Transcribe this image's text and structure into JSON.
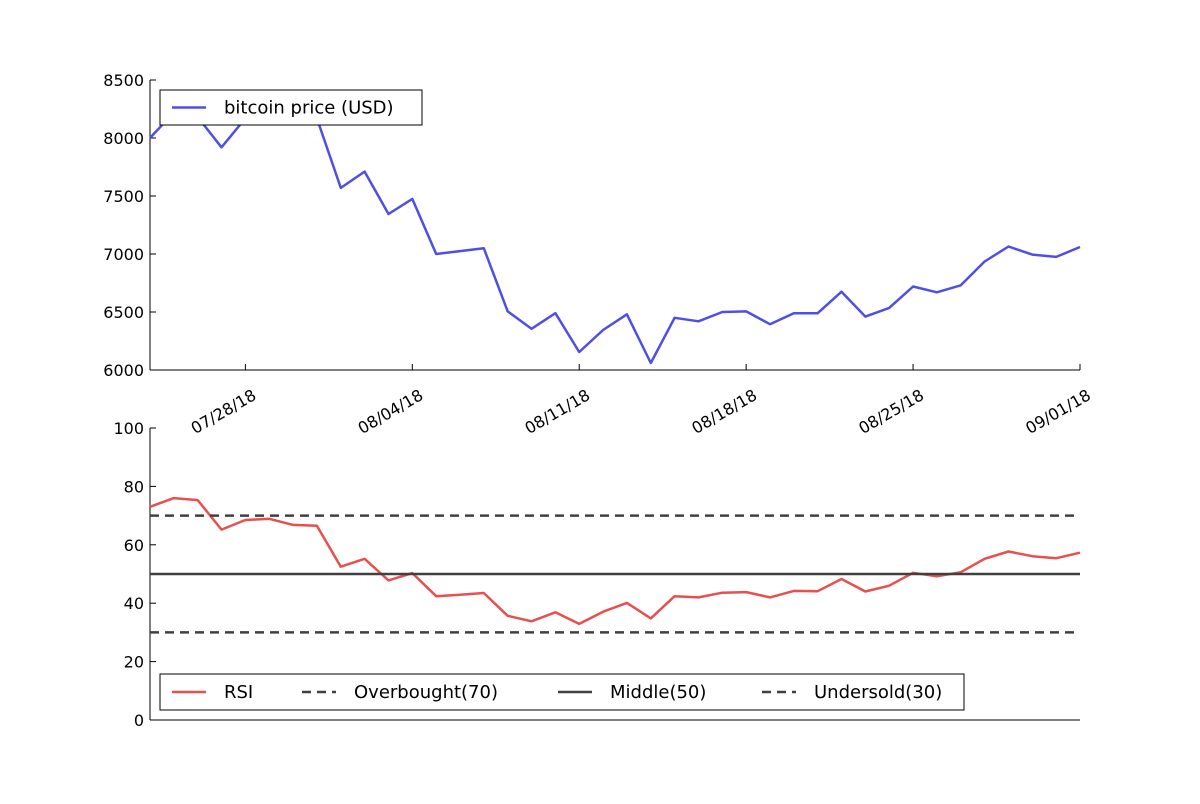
{
  "chart_data": [
    {
      "type": "line",
      "ylim": [
        6000,
        8500
      ],
      "yticks": [
        6000,
        6500,
        7000,
        7500,
        8000,
        8500
      ],
      "xlim": [
        "2018-07-24",
        "2018-09-01"
      ],
      "xtick_labels": [
        "07/28/18",
        "08/04/18",
        "08/11/18",
        "08/18/18",
        "08/25/18",
        "09/01/18"
      ],
      "legend_position": "upper-left",
      "series": [
        {
          "name": "bitcoin price (USD)",
          "color": "#4f4fe8",
          "points": [
            [
              "2018-07-24",
              8000
            ],
            [
              "2018-07-25",
              8220
            ],
            [
              "2018-07-26",
              8180
            ],
            [
              "2018-07-27",
              7920
            ],
            [
              "2018-07-28",
              8170
            ],
            [
              "2018-07-29",
              8210
            ],
            [
              "2018-07-30",
              8200
            ],
            [
              "2018-07-31",
              8170
            ],
            [
              "2018-08-01",
              7570
            ],
            [
              "2018-08-02",
              7710
            ],
            [
              "2018-08-03",
              7345
            ],
            [
              "2018-08-04",
              7475
            ],
            [
              "2018-08-05",
              7000
            ],
            [
              "2018-08-06",
              7025
            ],
            [
              "2018-08-07",
              7050
            ],
            [
              "2018-08-08",
              6505
            ],
            [
              "2018-08-09",
              6355
            ],
            [
              "2018-08-10",
              6490
            ],
            [
              "2018-08-11",
              6155
            ],
            [
              "2018-08-12",
              6345
            ],
            [
              "2018-08-13",
              6480
            ],
            [
              "2018-08-14",
              6060
            ],
            [
              "2018-08-15",
              6450
            ],
            [
              "2018-08-16",
              6420
            ],
            [
              "2018-08-17",
              6500
            ],
            [
              "2018-08-18",
              6505
            ],
            [
              "2018-08-19",
              6395
            ],
            [
              "2018-08-20",
              6490
            ],
            [
              "2018-08-21",
              6490
            ],
            [
              "2018-08-22",
              6675
            ],
            [
              "2018-08-23",
              6460
            ],
            [
              "2018-08-24",
              6535
            ],
            [
              "2018-08-25",
              6720
            ],
            [
              "2018-08-26",
              6670
            ],
            [
              "2018-08-27",
              6730
            ],
            [
              "2018-08-28",
              6935
            ],
            [
              "2018-08-29",
              7065
            ],
            [
              "2018-08-30",
              6995
            ],
            [
              "2018-08-31",
              6975
            ],
            [
              "2018-09-01",
              7060
            ]
          ]
        }
      ]
    },
    {
      "type": "line",
      "ylim": [
        0,
        100
      ],
      "yticks": [
        0,
        20,
        40,
        60,
        80,
        100
      ],
      "xlim": [
        "2018-07-24",
        "2018-09-01"
      ],
      "legend_position": "lower-center",
      "series": [
        {
          "name": "RSI",
          "color": "#e84f4f",
          "style": "solid",
          "points": [
            [
              "2018-07-24",
              73
            ],
            [
              "2018-07-25",
              76
            ],
            [
              "2018-07-26",
              75.3
            ],
            [
              "2018-07-27",
              65.2
            ],
            [
              "2018-07-28",
              68.5
            ],
            [
              "2018-07-29",
              68.9
            ],
            [
              "2018-07-30",
              66.8
            ],
            [
              "2018-07-31",
              66.5
            ],
            [
              "2018-08-01",
              52.5
            ],
            [
              "2018-08-02",
              55.2
            ],
            [
              "2018-08-03",
              47.8
            ],
            [
              "2018-08-04",
              50.3
            ],
            [
              "2018-08-05",
              42.4
            ],
            [
              "2018-08-06",
              42.9
            ],
            [
              "2018-08-07",
              43.5
            ],
            [
              "2018-08-08",
              35.7
            ],
            [
              "2018-08-09",
              33.8
            ],
            [
              "2018-08-10",
              36.9
            ],
            [
              "2018-08-11",
              32.9
            ],
            [
              "2018-08-12",
              37.1
            ],
            [
              "2018-08-13",
              40.1
            ],
            [
              "2018-08-14",
              34.8
            ],
            [
              "2018-08-15",
              42.4
            ],
            [
              "2018-08-16",
              42
            ],
            [
              "2018-08-17",
              43.6
            ],
            [
              "2018-08-18",
              43.8
            ],
            [
              "2018-08-19",
              42
            ],
            [
              "2018-08-20",
              44.2
            ],
            [
              "2018-08-21",
              44.1
            ],
            [
              "2018-08-22",
              48.3
            ],
            [
              "2018-08-23",
              44
            ],
            [
              "2018-08-24",
              46
            ],
            [
              "2018-08-25",
              50.4
            ],
            [
              "2018-08-26",
              49.2
            ],
            [
              "2018-08-27",
              50.6
            ],
            [
              "2018-08-28",
              55.2
            ],
            [
              "2018-08-29",
              57.7
            ],
            [
              "2018-08-30",
              56.1
            ],
            [
              "2018-08-31",
              55.4
            ],
            [
              "2018-09-01",
              57.3
            ]
          ]
        },
        {
          "name": "Overbought(70)",
          "color": "#404040",
          "style": "dashed",
          "hline": 70
        },
        {
          "name": "Middle(50)",
          "color": "#404040",
          "style": "solid",
          "hline": 50
        },
        {
          "name": "Undersold(30)",
          "color": "#404040",
          "style": "dashed",
          "hline": 30
        }
      ]
    }
  ]
}
